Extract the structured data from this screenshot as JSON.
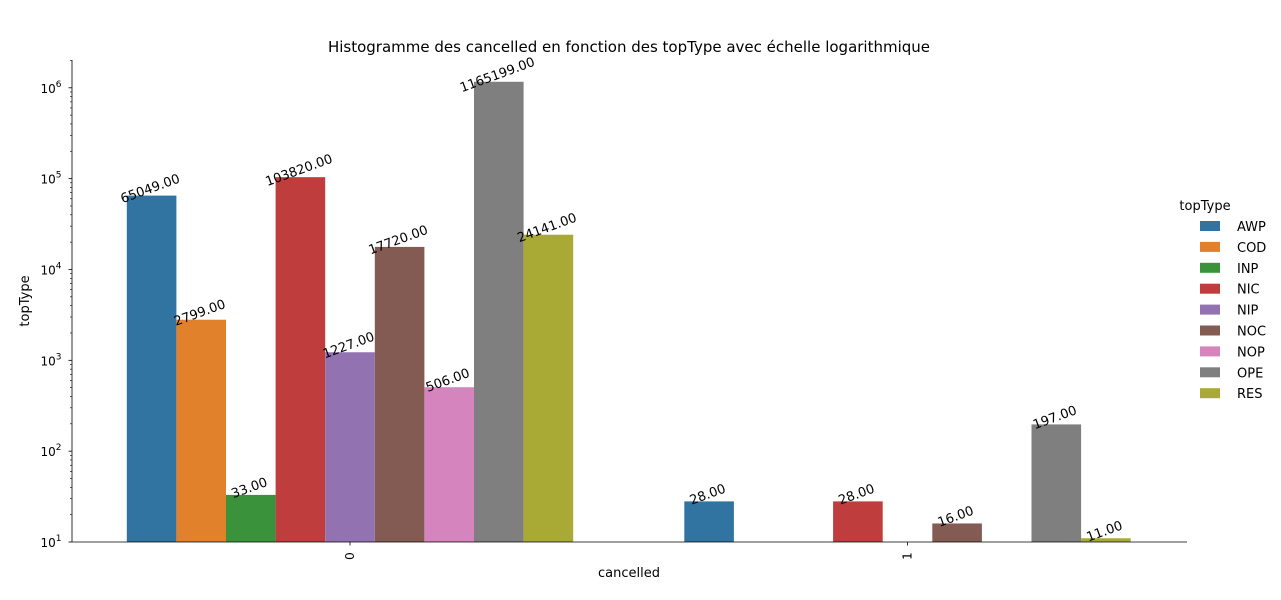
{
  "chart_data": {
    "type": "bar",
    "title": "Histogramme des cancelled en fonction des topType avec échelle logarithmique",
    "xlabel": "cancelled",
    "ylabel": "topType",
    "yscale": "log",
    "ylim": [
      6,
      2000000
    ],
    "yticks": [
      {
        "value": 10,
        "base": "10",
        "exp": "1"
      },
      {
        "value": 100,
        "base": "10",
        "exp": "2"
      },
      {
        "value": 1000,
        "base": "10",
        "exp": "3"
      },
      {
        "value": 10000,
        "base": "10",
        "exp": "4"
      },
      {
        "value": 100000,
        "base": "10",
        "exp": "5"
      },
      {
        "value": 1000000,
        "base": "10",
        "exp": "6"
      }
    ],
    "categories": [
      "0",
      "1"
    ],
    "grid": false,
    "legend": {
      "title": "topType",
      "position": "right"
    },
    "series": [
      {
        "name": "AWP",
        "color": "#3274a1",
        "values": [
          65049,
          28
        ]
      },
      {
        "name": "COD",
        "color": "#e1812c",
        "values": [
          2799,
          null
        ]
      },
      {
        "name": "INP",
        "color": "#3a923a",
        "values": [
          33,
          null
        ]
      },
      {
        "name": "NIC",
        "color": "#c03d3e",
        "values": [
          103820,
          28
        ]
      },
      {
        "name": "NIP",
        "color": "#9372b2",
        "values": [
          1227,
          null
        ]
      },
      {
        "name": "NOC",
        "color": "#845b53",
        "values": [
          17720,
          16
        ]
      },
      {
        "name": "NOP",
        "color": "#d684bd",
        "values": [
          506,
          null
        ]
      },
      {
        "name": "OPE",
        "color": "#7f7f7f",
        "values": [
          1165199,
          197
        ]
      },
      {
        "name": "RES",
        "color": "#a9aa35",
        "values": [
          24141,
          11
        ]
      }
    ],
    "value_labels": [
      [
        "65049.00",
        "28.00"
      ],
      [
        "2799.00",
        null
      ],
      [
        "33.00",
        null
      ],
      [
        "103820.00",
        "28.00"
      ],
      [
        "1227.00",
        null
      ],
      [
        "17720.00",
        "16.00"
      ],
      [
        "506.00",
        null
      ],
      [
        "1165199.00",
        "197.00"
      ],
      [
        "24141.00",
        "11.00"
      ]
    ]
  }
}
